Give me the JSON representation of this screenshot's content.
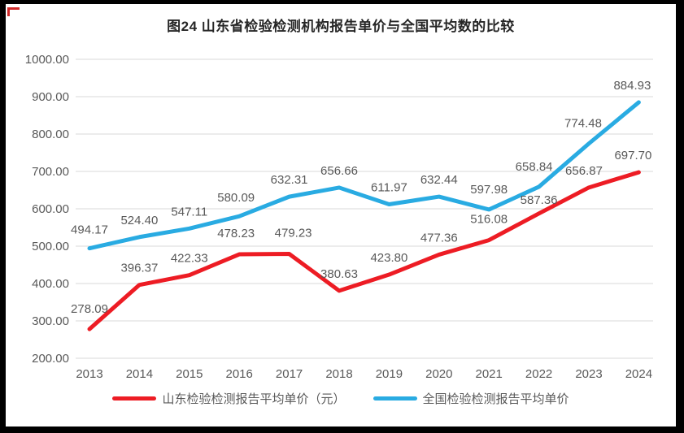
{
  "page": {
    "corner_mark_color": "#cc1111",
    "background": "#ffffff",
    "frame_color": "#000000"
  },
  "chart_data": {
    "type": "line",
    "title": "图24  山东省检验检测机构报告单价与全国平均数的比较",
    "categories": [
      "2013",
      "2014",
      "2015",
      "2016",
      "2017",
      "2018",
      "2019",
      "2020",
      "2021",
      "2022",
      "2023",
      "2024"
    ],
    "series": [
      {
        "name": "山东检验检测报告平均单价（元）",
        "color": "#ed1c24",
        "values": [
          278.09,
          396.37,
          422.33,
          478.23,
          479.23,
          380.63,
          423.8,
          477.36,
          516.08,
          587.36,
          656.87,
          697.7
        ],
        "label_dx": [
          0,
          0,
          0,
          -4,
          5,
          0,
          0,
          0,
          0,
          0,
          -6,
          -7
        ],
        "label_dy": [
          -4,
          0,
          0,
          -5,
          -5,
          0,
          0,
          0,
          -5,
          4,
          0,
          0
        ]
      },
      {
        "name": "全国检验检测报告平均单价",
        "color": "#29abe2",
        "values": [
          494.17,
          524.4,
          547.11,
          580.09,
          632.31,
          656.66,
          611.97,
          632.44,
          597.98,
          658.84,
          774.48,
          884.93
        ],
        "label_dx": [
          0,
          0,
          0,
          -4,
          0,
          0,
          0,
          0,
          0,
          -6,
          -7,
          -8
        ],
        "label_dy": [
          -2,
          0,
          0,
          -2,
          0,
          0,
          0,
          0,
          -4,
          -4,
          -4,
          0
        ]
      }
    ],
    "ylim": [
      200,
      1000
    ],
    "ytick_step": 100,
    "value_format_decimals": 2,
    "grid": "horizontal",
    "gridline_color": "#d9d9d9",
    "tick_label_color": "#595959",
    "data_labels": true,
    "legend_position": "bottom"
  }
}
